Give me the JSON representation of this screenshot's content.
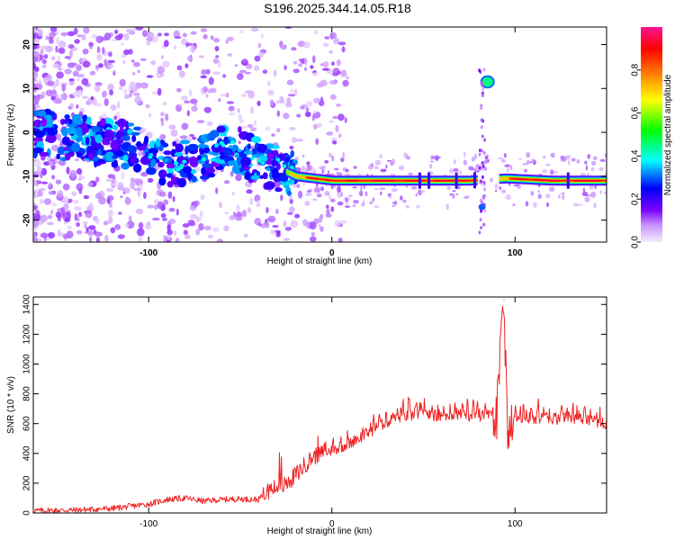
{
  "title": "S196.2025.344.14.05.R18",
  "chart_data": [
    {
      "type": "heatmap",
      "name": "spectrogram",
      "xlabel": "Height of straight line (km)",
      "ylabel": "Frequency (Hz)",
      "xlim": [
        -163,
        150
      ],
      "ylim": [
        -25,
        24
      ],
      "xticks": [
        -100,
        0,
        100
      ],
      "yticks": [
        -20,
        -10,
        0,
        10,
        20
      ],
      "xtick_labels": [
        "-100",
        "0",
        "100"
      ],
      "ytick_labels": [
        "-20",
        "-10",
        "0",
        "10",
        "20"
      ],
      "colorbar": {
        "label": "Normalized spectral amplitude",
        "range": [
          0,
          1
        ],
        "ticks": [
          0.0,
          0.2,
          0.4,
          0.6,
          0.8
        ],
        "tick_labels": [
          "0.0",
          "0.2",
          "0.4",
          "0.6",
          "0.8"
        ],
        "colors": [
          "#f0e0ff",
          "#7a00ff",
          "#0000ff",
          "#00ffff",
          "#00ff00",
          "#ffff00",
          "#ff8000",
          "#ff0000",
          "#ff1493"
        ]
      },
      "trace_points": [
        {
          "x": -160,
          "y": 0,
          "v": 0.25
        },
        {
          "x": -150,
          "y": -1,
          "v": 0.2
        },
        {
          "x": -130,
          "y": -2,
          "v": 0.3
        },
        {
          "x": -110,
          "y": -3,
          "v": 0.25
        },
        {
          "x": -90,
          "y": -7,
          "v": 0.4
        },
        {
          "x": -70,
          "y": -6,
          "v": 0.35
        },
        {
          "x": -55,
          "y": -3,
          "v": 0.4
        },
        {
          "x": -40,
          "y": -7,
          "v": 0.45
        },
        {
          "x": -30,
          "y": -8,
          "v": 0.5
        },
        {
          "x": -20,
          "y": -10,
          "v": 0.75
        },
        {
          "x": 0,
          "y": -11,
          "v": 0.9
        },
        {
          "x": 20,
          "y": -11,
          "v": 0.95
        },
        {
          "x": 50,
          "y": -11,
          "v": 0.95
        },
        {
          "x": 75,
          "y": -11,
          "v": 0.85
        },
        {
          "x": 82,
          "y": -17,
          "v": 0.3
        },
        {
          "x": 85,
          "y": 11.5,
          "v": 0.45
        },
        {
          "x": 95,
          "y": -10.5,
          "v": 0.8
        },
        {
          "x": 120,
          "y": -11,
          "v": 0.95
        },
        {
          "x": 150,
          "y": -11,
          "v": 0.9
        }
      ]
    },
    {
      "type": "line",
      "name": "snr",
      "xlabel": "Height of straight line (km)",
      "ylabel": "SNR (10 * v/v)",
      "xlim": [
        -163,
        150
      ],
      "ylim": [
        0,
        1450
      ],
      "xticks": [
        -100,
        0,
        100
      ],
      "yticks": [
        0,
        200,
        400,
        600,
        800,
        1000,
        1200,
        1400
      ],
      "xtick_labels": [
        "-100",
        "0",
        "100"
      ],
      "ytick_labels": [
        "0",
        "200",
        "400",
        "600",
        "800",
        "1000",
        "1200",
        "1400"
      ],
      "color": "#ee2222",
      "x": [
        -163,
        -140,
        -120,
        -110,
        -100,
        -90,
        -80,
        -70,
        -60,
        -50,
        -40,
        -35,
        -30,
        -25,
        -20,
        -15,
        -10,
        -5,
        0,
        10,
        20,
        30,
        40,
        50,
        60,
        70,
        80,
        90,
        94,
        96,
        100,
        110,
        120,
        130,
        140,
        150
      ],
      "y": [
        15,
        20,
        30,
        45,
        60,
        90,
        100,
        80,
        90,
        95,
        90,
        150,
        170,
        190,
        250,
        320,
        380,
        400,
        420,
        470,
        540,
        610,
        650,
        660,
        650,
        660,
        650,
        660,
        1430,
        480,
        650,
        640,
        630,
        640,
        620,
        600
      ]
    }
  ]
}
